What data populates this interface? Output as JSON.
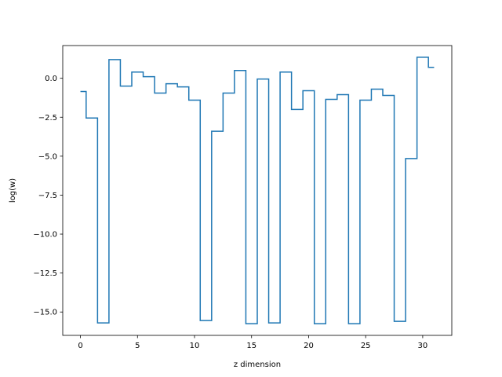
{
  "chart_data": {
    "type": "line",
    "drawstyle": "steps-mid",
    "title": "",
    "xlabel": "z dimension",
    "ylabel": "log(w)",
    "xlim": [
      -1.55,
      32.55
    ],
    "ylim": [
      -16.5,
      2.1
    ],
    "xticks": [
      0,
      5,
      10,
      15,
      20,
      25,
      30
    ],
    "xtick_labels": [
      "0",
      "5",
      "10",
      "15",
      "20",
      "25",
      "30"
    ],
    "yticks": [
      0.0,
      -2.5,
      -5.0,
      -7.5,
      -10.0,
      -12.5,
      -15.0
    ],
    "ytick_labels": [
      "0.0",
      "−2.5",
      "−5.0",
      "−7.5",
      "−10.0",
      "−12.5",
      "−15.0"
    ],
    "grid": false,
    "color": "#1f77b4",
    "series": [
      {
        "x": [
          0,
          1,
          2,
          3,
          4,
          5,
          6,
          7,
          8,
          9,
          10,
          11,
          12,
          13,
          14,
          15,
          16,
          17,
          18,
          19,
          20,
          21,
          22,
          23,
          24,
          25,
          26,
          27,
          28,
          29,
          30,
          31
        ],
        "values": [
          -0.85,
          -2.55,
          -15.7,
          1.2,
          -0.5,
          0.4,
          0.1,
          -0.95,
          -0.35,
          -0.55,
          -1.4,
          -15.55,
          -3.4,
          -0.95,
          0.5,
          -15.75,
          -0.05,
          -15.7,
          0.4,
          -2.0,
          -0.8,
          -15.75,
          -1.35,
          -1.05,
          -15.75,
          -1.4,
          -0.7,
          -1.1,
          -15.6,
          -5.15,
          1.35,
          0.7
        ]
      }
    ]
  }
}
